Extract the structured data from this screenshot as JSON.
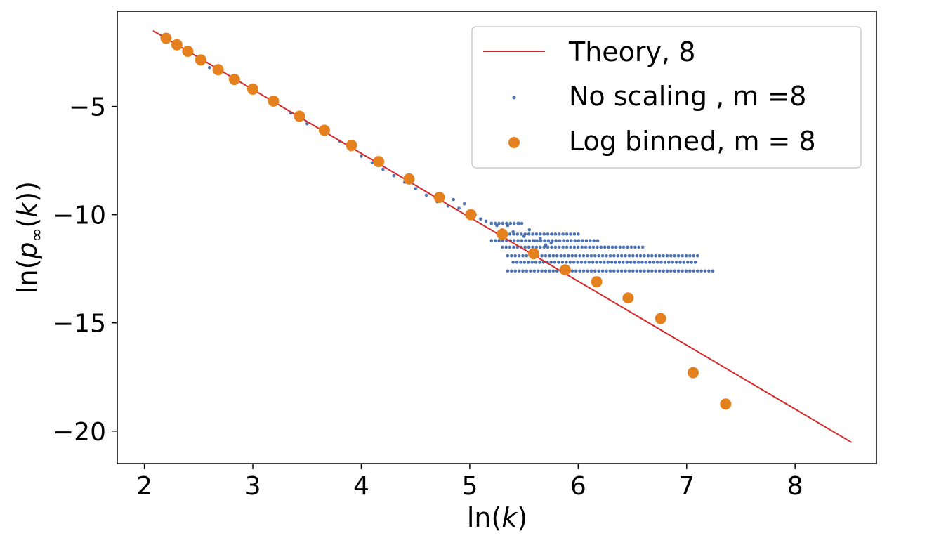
{
  "chart_data": {
    "type": "scatter",
    "xlabel": "ln(k)",
    "ylabel": "ln(p∞(k))",
    "xlim": [
      1.75,
      8.75
    ],
    "ylim": [
      -21.5,
      -0.6
    ],
    "xticks": [
      2,
      3,
      4,
      5,
      6,
      7,
      8
    ],
    "yticks": [
      -5,
      -10,
      -15,
      -20
    ],
    "xtick_labels": [
      "2",
      "3",
      "4",
      "5",
      "6",
      "7",
      "8"
    ],
    "ytick_labels": [
      "−5",
      "−10",
      "−15",
      "−20"
    ],
    "grid": false,
    "legend_position": "top-right",
    "colors": {
      "theory": "#d62728",
      "raw": "#4c72b0",
      "binned": "#e5801f"
    },
    "series": [
      {
        "name": "Theory, 8",
        "kind": "line",
        "x": [
          2.08,
          8.52
        ],
        "y": [
          -1.5,
          -20.52
        ]
      },
      {
        "name": "No scaling , m =8",
        "kind": "dots",
        "x": [
          2.2,
          2.4,
          2.6,
          2.8,
          3.0,
          3.2,
          3.35,
          3.5,
          3.65,
          3.8,
          3.9,
          4.0,
          4.1,
          4.2,
          4.3,
          4.4,
          4.5,
          4.6,
          4.7,
          4.8,
          4.85,
          4.9,
          4.95,
          5.0,
          5.05,
          5.1,
          5.15,
          5.2,
          5.25,
          5.3,
          5.35,
          5.4,
          5.45,
          5.5,
          5.55,
          5.6,
          5.65,
          5.7,
          5.75
        ],
        "y": [
          -2.0,
          -2.6,
          -3.2,
          -3.8,
          -4.3,
          -4.9,
          -5.3,
          -5.8,
          -6.2,
          -6.6,
          -7.0,
          -7.3,
          -7.6,
          -7.9,
          -8.2,
          -8.5,
          -8.8,
          -9.1,
          -9.4,
          -9.6,
          -9.3,
          -9.7,
          -9.5,
          -9.9,
          -10.0,
          -10.2,
          -10.3,
          -10.4,
          -10.5,
          -10.7,
          -10.5,
          -10.8,
          -10.4,
          -11.0,
          -10.7,
          -11.2,
          -11.1,
          -11.4,
          -11.3
        ],
        "plateaus": [
          {
            "y": -10.4,
            "x_from": 5.2,
            "x_to": 5.5
          },
          {
            "y": -10.9,
            "x_from": 5.3,
            "x_to": 6.0
          },
          {
            "y": -11.2,
            "x_from": 5.2,
            "x_to": 6.2
          },
          {
            "y": -11.5,
            "x_from": 5.3,
            "x_to": 6.6
          },
          {
            "y": -11.9,
            "x_from": 5.35,
            "x_to": 7.1
          },
          {
            "y": -12.2,
            "x_from": 5.4,
            "x_to": 7.1
          },
          {
            "y": -12.6,
            "x_from": 5.35,
            "x_to": 7.25
          }
        ]
      },
      {
        "name": "Log binned, m = 8",
        "kind": "markers",
        "x": [
          2.2,
          2.3,
          2.4,
          2.52,
          2.68,
          2.83,
          3.0,
          3.19,
          3.43,
          3.66,
          3.91,
          4.16,
          4.44,
          4.72,
          5.01,
          5.3,
          5.59,
          5.88,
          6.17,
          6.46,
          6.76,
          7.06,
          7.36
        ],
        "y": [
          -1.85,
          -2.15,
          -2.45,
          -2.85,
          -3.3,
          -3.75,
          -4.2,
          -4.75,
          -5.45,
          -6.1,
          -6.8,
          -7.55,
          -8.35,
          -9.2,
          -10.0,
          -10.9,
          -11.8,
          -12.55,
          -13.1,
          -13.85,
          -14.8,
          -17.3,
          -18.75
        ]
      }
    ]
  }
}
